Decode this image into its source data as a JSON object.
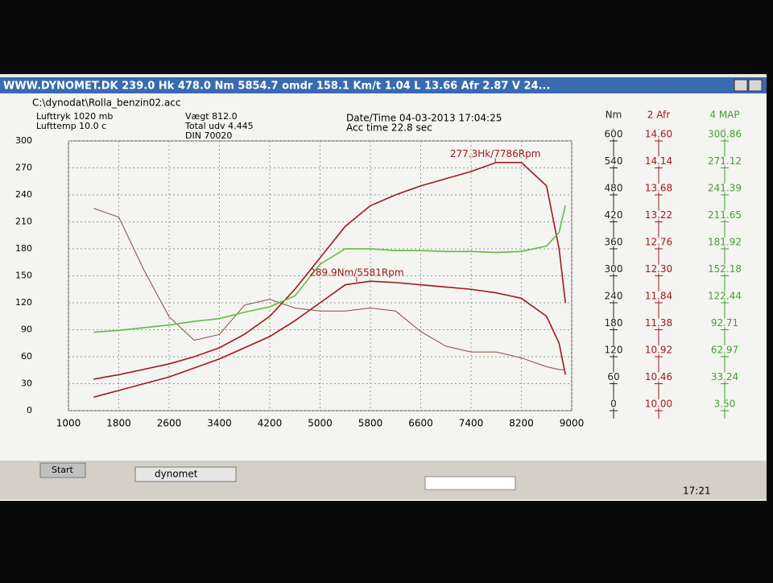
{
  "window_title": "WWW.DYNOMET.DK  239.0 Hk 478.0 Nm 5854.7 omdr 158.1 Km/t  1.04 L 13.66 Afr 2.87 V 24...",
  "file_path": "C:\\dynodat\\Rolla_benzin02.acc",
  "info": {
    "pressure": "Lufttryk  1020 mb",
    "temperature": "Lufttemp  10.0 c",
    "weight": "Vægt     812.0",
    "gear_ratio": "Total udv 4.445",
    "standard": "DIN 70020",
    "datetime": "Date/Time  04-03-2013 17:04:25",
    "acc_time": "Acc time   22.8 sec"
  },
  "chart_data": {
    "type": "line",
    "x": [
      1400,
      1800,
      2200,
      2600,
      3000,
      3400,
      3800,
      4200,
      4600,
      5000,
      5400,
      5800,
      6200,
      6600,
      7000,
      7400,
      7800,
      8200,
      8600,
      8800,
      8900
    ],
    "xlim": [
      1000,
      9000
    ],
    "xticks": [
      1000,
      1800,
      2600,
      3400,
      4200,
      5000,
      5800,
      6600,
      7400,
      8200,
      9000
    ],
    "ylim": [
      0,
      300
    ],
    "yticks": [
      0,
      30,
      60,
      90,
      120,
      150,
      180,
      210,
      240,
      270,
      300
    ],
    "y2label": "Nm",
    "y2lim": [
      0,
      600
    ],
    "y2ticks": [
      0,
      60,
      120,
      180,
      240,
      300,
      360,
      420,
      480,
      540,
      600
    ],
    "y3label": "2 Afr",
    "y3lim": [
      10,
      14.6
    ],
    "y3ticks": [
      {
        "value": 10,
        "label": "10.00"
      },
      10.46,
      10.92,
      11.38,
      11.84,
      {
        "value": 12.3,
        "label": "12.30"
      },
      12.76,
      13.22,
      13.68,
      14.14,
      {
        "value": 14.6,
        "label": "14.60"
      }
    ],
    "y4label": "4 MAP",
    "y4lim": [
      3.5,
      300.86
    ],
    "y4ticks": [
      {
        "value": 3.5,
        "label": "3.50"
      },
      33.24,
      62.97,
      92.71,
      122.44,
      152.18,
      181.92,
      211.65,
      241.39,
      271.12,
      300.86
    ],
    "grid": true,
    "series": [
      {
        "color": "#a01820",
        "axis": "y",
        "values": [
          35,
          40,
          46,
          52,
          60,
          70,
          85,
          105,
          135,
          170,
          205,
          228,
          240,
          250,
          258,
          266,
          276,
          276,
          250,
          180,
          120
        ]
      },
      {
        "color": "#a01820",
        "axis": "y2",
        "values": [
          30,
          45,
          60,
          75,
          95,
          115,
          140,
          165,
          200,
          240,
          280,
          288,
          285,
          280,
          275,
          270,
          262,
          250,
          210,
          150,
          80
        ]
      },
      {
        "color": "#8a4a40",
        "axis": "y3",
        "values": [
          13.45,
          13.3,
          12.4,
          11.6,
          11.2,
          11.3,
          11.8,
          11.9,
          11.75,
          11.7,
          11.7,
          11.75,
          11.7,
          11.35,
          11.1,
          11.0,
          11.0,
          10.9,
          10.75,
          10.7,
          10.7
        ]
      },
      {
        "color": "#5cc040",
        "axis": "y4",
        "values": [
          90,
          92,
          95,
          98,
          102,
          105,
          112,
          118,
          130,
          165,
          182,
          182,
          180,
          180,
          179,
          179,
          178,
          179,
          185,
          200,
          230
        ]
      }
    ],
    "annotations": [
      {
        "text": "277.3Hk/7786Rpm",
        "x": 7786,
        "y": 277.3,
        "axis": "y"
      },
      {
        "text": "289.9Nm/5581Rpm",
        "x": 5581,
        "y": 289.9,
        "axis": "y2"
      }
    ]
  },
  "taskbar": {
    "start": "Start",
    "app": "dynomet",
    "clock": "17:21"
  }
}
